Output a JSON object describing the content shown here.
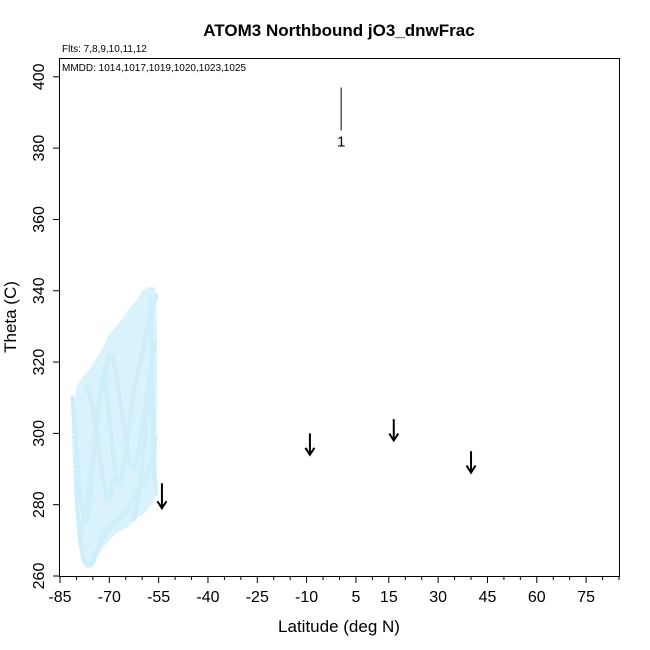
{
  "chart_data": {
    "type": "scatter",
    "title": "ATOM3 Northbound jO3_dnwFrac",
    "annotations": {
      "flights": "Flts: 7,8,9,10,11,12",
      "dates": "MMDD: 1014,1017,1019,1020,1023,1025"
    },
    "xlabel": "Latitude (deg N)",
    "ylabel": "Theta (C)",
    "xlim": [
      -85,
      85
    ],
    "ylim": [
      260,
      405
    ],
    "xticks_major": [
      -85,
      -70,
      -55,
      -40,
      -25,
      -10,
      5,
      15,
      30,
      45,
      60,
      75
    ],
    "xtick_labels": [
      "-85",
      "-70",
      "-55",
      "-40",
      "-25",
      "-10",
      "5",
      "15",
      "30",
      "45",
      "60",
      "75"
    ],
    "xticks_minor_step": 5,
    "yticks": [
      260,
      280,
      300,
      320,
      340,
      360,
      380,
      400
    ],
    "ytick_labels": [
      "260",
      "280",
      "300",
      "320",
      "340",
      "360",
      "380",
      "400"
    ],
    "grid": false,
    "legend": "none",
    "point_color": "#cdeefa",
    "traces": [
      {
        "lat": [
          -80.9,
          -80.6,
          -80.3,
          -79.9,
          -79.5,
          -79.0,
          -78.5,
          -78.0,
          -77.4,
          -76.6,
          -75.8,
          -75.0,
          -74.2,
          -73.3,
          -72.4,
          -71.4,
          -70.4,
          -69.4,
          -68.3,
          -67.2,
          -66.1,
          -64.9,
          -63.7,
          -62.4,
          -61.1,
          -59.9,
          -58.7,
          -57.6,
          -56.6,
          -55.8
        ],
        "theta": [
          305,
          296,
          288,
          281,
          276,
          271,
          268,
          265,
          264,
          263,
          263,
          264,
          266,
          268,
          270,
          272,
          273,
          274,
          275,
          276,
          277,
          278,
          280,
          282,
          284,
          286,
          288,
          291,
          294,
          300
        ]
      },
      {
        "lat": [
          -81.2,
          -80.8,
          -80.4,
          -80.0,
          -79.5,
          -79.0,
          -78.5,
          -78.0,
          -77.5,
          -77.0,
          -76.5,
          -76.0,
          -75.5,
          -75.0,
          -74.6,
          -74.2,
          -73.8,
          -73.4,
          -73.0,
          -72.6,
          -72.2,
          -71.8,
          -71.4,
          -71.0
        ],
        "theta": [
          310,
          305,
          300,
          295,
          290,
          285,
          281,
          278,
          276,
          275,
          277,
          280,
          284,
          289,
          294,
          298,
          302,
          306,
          309,
          312,
          314,
          316,
          318,
          319
        ]
      },
      {
        "lat": [
          -77.0,
          -76.5,
          -76.0,
          -75.5,
          -75.0,
          -74.5,
          -74.0,
          -73.5,
          -73.0,
          -72.5,
          -72.0,
          -71.5,
          -71.0,
          -70.5,
          -70.0,
          -69.5,
          -69.0,
          -68.5
        ],
        "theta": [
          313,
          312,
          311,
          309,
          307,
          304,
          301,
          298,
          295,
          291,
          288,
          285,
          283,
          282,
          282,
          283,
          285,
          288
        ]
      },
      {
        "lat": [
          -71.5,
          -71.0,
          -70.5,
          -70.0,
          -69.4,
          -68.8,
          -68.2,
          -67.6,
          -67.0,
          -66.4,
          -65.8,
          -65.2,
          -64.6,
          -64.0,
          -63.4,
          -62.8,
          -62.2,
          -61.6,
          -61.0,
          -60.4,
          -59.8,
          -59.2,
          -58.6,
          -58.0,
          -57.4,
          -56.8,
          -56.2,
          -55.6
        ],
        "theta": [
          318,
          314,
          309,
          304,
          299,
          294,
          290,
          287,
          286,
          287,
          290,
          294,
          298,
          302,
          306,
          310,
          313,
          316,
          318,
          321,
          323,
          326,
          328,
          331,
          333,
          335,
          337,
          339
        ]
      },
      {
        "lat": [
          -69.0,
          -68.2,
          -67.4,
          -66.6,
          -65.8,
          -65.0,
          -64.2,
          -63.4,
          -62.6,
          -61.8,
          -61.0,
          -60.2,
          -59.4,
          -58.6,
          -57.8,
          -57.0,
          -56.2
        ],
        "theta": [
          322,
          318,
          313,
          308,
          303,
          298,
          294,
          291,
          290,
          292,
          296,
          301,
          306,
          311,
          316,
          321,
          326
        ]
      },
      {
        "lat": [
          -57.4,
          -57.3,
          -57.2,
          -57.1,
          -57.0,
          -56.9,
          -56.8,
          -56.7,
          -56.6,
          -56.5,
          -56.4,
          -56.3,
          -56.2,
          -56.1,
          -56.0,
          -55.9,
          -55.8
        ],
        "theta": [
          338,
          332,
          326,
          320,
          314,
          308,
          302,
          296,
          292,
          290,
          289,
          288,
          287,
          286,
          285,
          284,
          283
        ]
      },
      {
        "lat": [
          -62.5,
          -62.0,
          -61.5,
          -61.0,
          -60.5,
          -60.0,
          -59.5,
          -59.0,
          -58.5,
          -58.0,
          -57.5,
          -57.0
        ],
        "theta": [
          276,
          278,
          281,
          284,
          288,
          292,
          296,
          300,
          305,
          309,
          313,
          317
        ]
      },
      {
        "lat": [
          -78.8,
          -78.0,
          -77.2,
          -76.4,
          -75.6,
          -74.8,
          -74.0,
          -73.2,
          -72.4,
          -71.6,
          -70.8,
          -70.0
        ],
        "theta": [
          272,
          275,
          279,
          284,
          290,
          296,
          302,
          307,
          312,
          316,
          319,
          322
        ]
      }
    ],
    "fill_region": {
      "lat": [
        -81,
        -80,
        -78,
        -76,
        -74,
        -72,
        -70,
        -68,
        -66,
        -64,
        -62,
        -60,
        -58,
        -56,
        -55.5,
        -55.6,
        -56,
        -58,
        -60,
        -62,
        -64,
        -66,
        -68,
        -70,
        -72,
        -74,
        -76,
        -78,
        -80
      ],
      "theta": [
        306,
        313,
        316,
        318,
        321,
        324,
        328,
        330,
        332,
        335,
        337,
        340,
        341,
        341,
        330,
        285,
        282,
        279,
        277,
        276,
        274,
        273,
        272,
        270,
        268,
        265,
        263,
        264,
        280
      ]
    },
    "arrows": [
      {
        "lat": -54.0,
        "theta_top": 286,
        "theta_bottom": 279
      },
      {
        "lat": -9.0,
        "theta_top": 300,
        "theta_bottom": 294
      },
      {
        "lat": 16.5,
        "theta_top": 304,
        "theta_bottom": 298
      },
      {
        "lat": 40.0,
        "theta_top": 295,
        "theta_bottom": 289
      }
    ],
    "markers": [
      {
        "label": "1",
        "lat": 0.5,
        "theta_top": 397,
        "theta_bottom": 385
      }
    ]
  }
}
